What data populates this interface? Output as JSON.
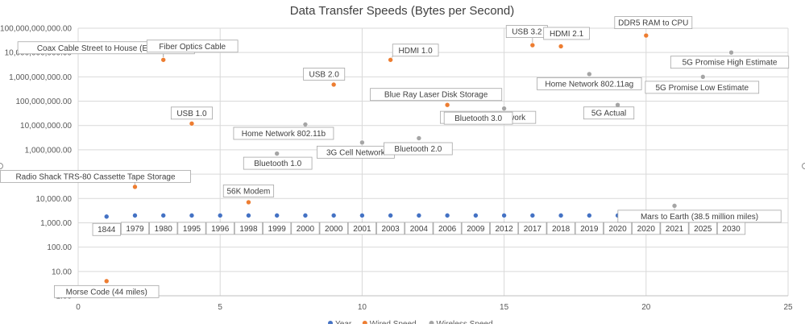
{
  "chart_data": {
    "type": "scatter",
    "title": "Data Transfer Speeds (Bytes per Second)",
    "xlabel": "",
    "ylabel": "",
    "xlim": [
      0,
      25
    ],
    "x_ticks": [
      "0",
      "5",
      "10",
      "15",
      "20",
      "25"
    ],
    "ylim": [
      1,
      100000000000
    ],
    "y_scale": "log",
    "y_ticks": [
      "1.00",
      "10.00",
      "100.00",
      "1,000.00",
      "10,000.00",
      "100,000.00",
      "1,000,000.00",
      "10,000,000.00",
      "100,000,000.00",
      "1,000,000,000.00",
      "10,000,000,000.00",
      "100,000,000,000.00"
    ],
    "grid": true,
    "legend_position": "bottom",
    "series": [
      {
        "name": "Year",
        "color": "#4472c4",
        "points": [
          {
            "x": 1,
            "y": 1800,
            "label": "1844"
          },
          {
            "x": 2,
            "y": 2000,
            "label": "1979"
          },
          {
            "x": 3,
            "y": 2000,
            "label": "1980"
          },
          {
            "x": 4,
            "y": 2000,
            "label": "1995"
          },
          {
            "x": 5,
            "y": 2000,
            "label": "1996"
          },
          {
            "x": 6,
            "y": 2000,
            "label": "1998"
          },
          {
            "x": 7,
            "y": 2000,
            "label": "1999"
          },
          {
            "x": 8,
            "y": 2000,
            "label": "2000"
          },
          {
            "x": 9,
            "y": 2000,
            "label": "2000"
          },
          {
            "x": 10,
            "y": 2000,
            "label": "2001"
          },
          {
            "x": 11,
            "y": 2000,
            "label": "2003"
          },
          {
            "x": 12,
            "y": 2000,
            "label": "2004"
          },
          {
            "x": 13,
            "y": 2000,
            "label": "2006"
          },
          {
            "x": 14,
            "y": 2000,
            "label": "2009"
          },
          {
            "x": 15,
            "y": 2000,
            "label": "2012"
          },
          {
            "x": 16,
            "y": 2000,
            "label": "2017"
          },
          {
            "x": 17,
            "y": 2000,
            "label": "2018"
          },
          {
            "x": 18,
            "y": 2000,
            "label": "2019"
          },
          {
            "x": 19,
            "y": 2000,
            "label": "2020"
          },
          {
            "x": 20,
            "y": 2000,
            "label": "2020"
          },
          {
            "x": 21,
            "y": 2000,
            "label": "2021"
          },
          {
            "x": 22,
            "y": 2000,
            "label": "2025"
          },
          {
            "x": 23,
            "y": 2000,
            "label": "2030"
          }
        ]
      },
      {
        "name": "Wired Speed",
        "color": "#ed7d31",
        "points": [
          {
            "x": 1,
            "y": 4,
            "label": "Morse Code (44 miles)"
          },
          {
            "x": 2,
            "y": 30000,
            "label": "Radio Shack TRS-80 Cassette Tape Storage"
          },
          {
            "x": 3,
            "y": 5000000000,
            "label": "Coax Cable Street to House (Ethernet)"
          },
          {
            "x": 3,
            "y": 5000000000,
            "label": "Fiber Optics Cable"
          },
          {
            "x": 4,
            "y": 12000000,
            "label": "USB 1.0"
          },
          {
            "x": 6,
            "y": 7000,
            "label": "56K Modem"
          },
          {
            "x": 9,
            "y": 480000000,
            "label": "USB 2.0"
          },
          {
            "x": 11,
            "y": 5000000000,
            "label": "HDMI 1.0"
          },
          {
            "x": 13,
            "y": 70000000,
            "label": "Blue Ray Laser Disk Storage"
          },
          {
            "x": 16,
            "y": 20000000000,
            "label": "USB 3.2"
          },
          {
            "x": 17,
            "y": 18000000000,
            "label": "HDMI 2.1"
          },
          {
            "x": 20,
            "y": 50000000000,
            "label": "DDR5 RAM to CPU"
          }
        ]
      },
      {
        "name": "Wireless Speed",
        "color": "#a5a5a5",
        "points": [
          {
            "x": 7,
            "y": 700000,
            "label": "Bluetooth 1.0"
          },
          {
            "x": 8,
            "y": 11000000,
            "label": "Home Network 802.11b"
          },
          {
            "x": 10,
            "y": 2000000,
            "label": "3G Cell Network"
          },
          {
            "x": 12,
            "y": 3000000,
            "label": "Bluetooth 2.0"
          },
          {
            "x": 15,
            "y": 50000000,
            "label": "4G LTE Cell Network"
          },
          {
            "x": 15,
            "y": 50000000,
            "label": "Bluetooth 3.0"
          },
          {
            "x": 18,
            "y": 1300000000,
            "label": "Home Network 802.11ag"
          },
          {
            "x": 19,
            "y": 70000000,
            "label": "5G Actual"
          },
          {
            "x": 21,
            "y": 5000,
            "label": "Mars to Earth (38.5 million miles)"
          },
          {
            "x": 22,
            "y": 1000000000,
            "label": "5G Promise Low Estimate"
          },
          {
            "x": 23,
            "y": 10000000000,
            "label": "5G Promise High Estimate"
          }
        ]
      }
    ]
  }
}
